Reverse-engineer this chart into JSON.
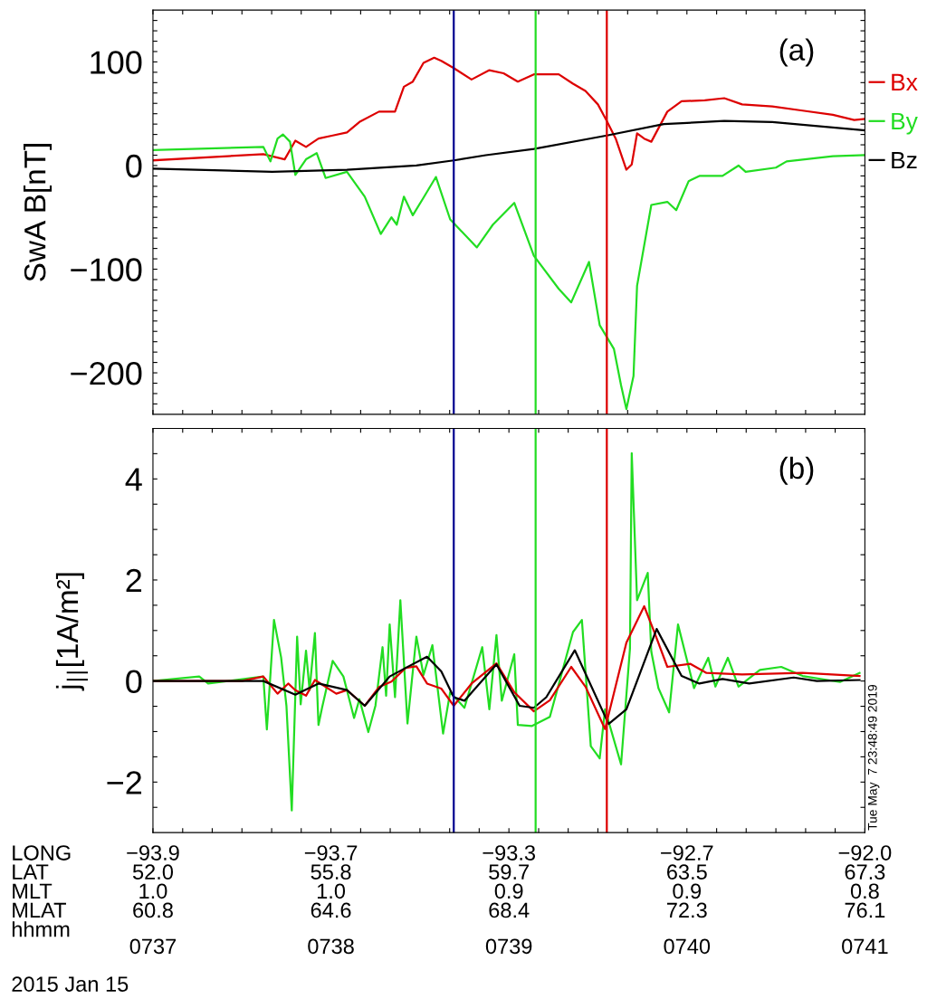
{
  "chart_data": [
    {
      "type": "line",
      "ylabel": "SwA B[nT]",
      "annotations": [
        "(a)"
      ],
      "xlim": [
        737,
        741
      ],
      "ylim": [
        -240,
        150
      ],
      "xticks": [
        {
          "value": 737,
          "label": null
        },
        {
          "value": 737.167,
          "label": null
        },
        {
          "value": 737.333,
          "label": null
        },
        {
          "value": 737.5,
          "label": null
        },
        {
          "value": 737.667,
          "label": null
        },
        {
          "value": 737.833,
          "label": null
        },
        {
          "value": 738,
          "label": null
        },
        {
          "value": 738.167,
          "label": null
        },
        {
          "value": 738.333,
          "label": null
        },
        {
          "value": 738.5,
          "label": null
        },
        {
          "value": 738.667,
          "label": null
        },
        {
          "value": 738.833,
          "label": null
        },
        {
          "value": 739,
          "label": null
        },
        {
          "value": 739.167,
          "label": null
        },
        {
          "value": 739.333,
          "label": null
        },
        {
          "value": 739.5,
          "label": null
        },
        {
          "value": 739.667,
          "label": null
        },
        {
          "value": 739.833,
          "label": null
        },
        {
          "value": 740,
          "label": null
        },
        {
          "value": 740.167,
          "label": null
        },
        {
          "value": 740.333,
          "label": null
        },
        {
          "value": 740.5,
          "label": null
        },
        {
          "value": 740.667,
          "label": null
        },
        {
          "value": 740.833,
          "label": null
        },
        {
          "value": 741,
          "label": null
        }
      ],
      "yticks": [
        {
          "value": -230,
          "label": null
        },
        {
          "value": -220,
          "label": null
        },
        {
          "value": -210,
          "label": null
        },
        {
          "value": -200,
          "label": "−200"
        },
        {
          "value": -190,
          "label": null
        },
        {
          "value": -180,
          "label": null
        },
        {
          "value": -170,
          "label": null
        },
        {
          "value": -160,
          "label": null
        },
        {
          "value": -150,
          "label": null
        },
        {
          "value": -140,
          "label": null
        },
        {
          "value": -130,
          "label": null
        },
        {
          "value": -120,
          "label": null
        },
        {
          "value": -110,
          "label": null
        },
        {
          "value": -100,
          "label": "−100"
        },
        {
          "value": -90,
          "label": null
        },
        {
          "value": -80,
          "label": null
        },
        {
          "value": -70,
          "label": null
        },
        {
          "value": -60,
          "label": null
        },
        {
          "value": -50,
          "label": null
        },
        {
          "value": -40,
          "label": null
        },
        {
          "value": -30,
          "label": null
        },
        {
          "value": -20,
          "label": null
        },
        {
          "value": -10,
          "label": null
        },
        0,
        {
          "value": 10,
          "label": null
        },
        {
          "value": 20,
          "label": null
        },
        {
          "value": 30,
          "label": null
        },
        {
          "value": 40,
          "label": null
        },
        {
          "value": 50,
          "label": null
        },
        {
          "value": 60,
          "label": null
        },
        {
          "value": 70,
          "label": null
        },
        {
          "value": 80,
          "label": null
        },
        {
          "value": 90,
          "label": null
        },
        100,
        {
          "value": 110,
          "label": null
        },
        {
          "value": 120,
          "label": null
        },
        {
          "value": 130,
          "label": null
        },
        {
          "value": 140,
          "label": null
        }
      ],
      "tick_labels": "y",
      "grid": false,
      "legend": "right",
      "marker": "none",
      "line_style": "solid",
      "ref_lines": [
        {
          "axis": "x",
          "value": 738.69,
          "color": "#000090"
        },
        {
          "axis": "x",
          "value": 739.15,
          "color": "#22dd22"
        },
        {
          "axis": "x",
          "value": 739.55,
          "color": "#dd0000"
        }
      ],
      "series": [
        {
          "name": "Bx",
          "color": "#dd0000",
          "x": [
            737.0,
            737.62,
            737.74,
            737.8,
            737.86,
            737.93,
            738.01,
            738.09,
            738.16,
            738.27,
            738.36,
            738.41,
            738.46,
            738.52,
            738.58,
            738.62,
            738.69,
            738.79,
            738.89,
            738.97,
            739.05,
            739.14,
            739.28,
            739.36,
            739.43,
            739.5,
            739.55,
            739.6,
            739.66,
            739.69,
            739.72,
            739.76,
            739.8,
            739.89,
            739.97,
            740.1,
            740.21,
            740.31,
            740.48,
            740.65,
            740.82,
            740.94,
            741.0
          ],
          "values": [
            5,
            11,
            6,
            24,
            18,
            26,
            29,
            32,
            42,
            52,
            52,
            76,
            81,
            99,
            104,
            101,
            94,
            83,
            92,
            89,
            81,
            88,
            88,
            79,
            72,
            59,
            43,
            26,
            -4,
            1,
            31,
            26,
            23,
            52,
            62,
            63,
            65,
            59,
            57,
            53,
            49,
            44,
            45
          ]
        },
        {
          "name": "By",
          "color": "#22dd22",
          "x": [
            737.0,
            737.62,
            737.66,
            737.7,
            737.73,
            737.77,
            737.8,
            737.86,
            737.92,
            737.97,
            738.09,
            738.19,
            738.28,
            738.34,
            738.37,
            738.41,
            738.46,
            738.52,
            738.59,
            738.67,
            738.82,
            738.91,
            739.03,
            739.14,
            739.28,
            739.35,
            739.45,
            739.51,
            739.59,
            739.63,
            739.66,
            739.7,
            739.72,
            739.8,
            739.89,
            739.94,
            740.01,
            740.07,
            740.2,
            740.29,
            740.33,
            740.5,
            740.56,
            740.82,
            741.0
          ],
          "values": [
            15,
            18,
            4,
            26,
            30,
            23,
            -9,
            6,
            12,
            -12,
            -6,
            -30,
            -66,
            -50,
            -57,
            -30,
            -48,
            -31,
            -11,
            -52,
            -79,
            -57,
            -36,
            -87,
            -119,
            -132,
            -93,
            -154,
            -177,
            -212,
            -235,
            -203,
            -116,
            -38,
            -35,
            -43,
            -15,
            -10,
            -10,
            0,
            -6,
            -2,
            4,
            9,
            10
          ]
        },
        {
          "name": "Bz",
          "color": "#000000",
          "x": [
            737.0,
            737.67,
            738.09,
            738.48,
            738.69,
            738.87,
            739.14,
            739.55,
            739.87,
            740.21,
            740.48,
            741.0
          ],
          "values": [
            -3,
            -6,
            -4,
            0,
            5,
            10,
            16,
            29,
            40,
            43,
            42,
            34
          ]
        }
      ]
    },
    {
      "type": "line",
      "ylabel": "j$_{||}$[1A/m²]",
      "annotations": [
        "(b)",
        "LONG\nLAT\nMLT\nMLAT\nhhmm",
        "2015 Jan 15",
        "Tue May  7 23:48:49 2019",
        "−93.9\n52.0\n1.0\n60.8",
        "−93.7\n55.8\n1.0\n64.6",
        "−93.3\n59.7\n0.9\n68.4",
        "−92.7\n63.5\n0.9\n72.3",
        "−92.0\n67.3\n0.8\n76.1"
      ],
      "xlim": [
        737,
        741
      ],
      "ylim": [
        -3,
        5
      ],
      "xticks": [
        {
          "value": 737,
          "label": "0737"
        },
        {
          "value": 737.167,
          "label": null
        },
        {
          "value": 737.333,
          "label": null
        },
        {
          "value": 737.5,
          "label": null
        },
        {
          "value": 737.667,
          "label": null
        },
        {
          "value": 737.833,
          "label": null
        },
        {
          "value": 738,
          "label": "0738"
        },
        {
          "value": 738.167,
          "label": null
        },
        {
          "value": 738.333,
          "label": null
        },
        {
          "value": 738.5,
          "label": null
        },
        {
          "value": 738.667,
          "label": null
        },
        {
          "value": 738.833,
          "label": null
        },
        {
          "value": 739,
          "label": "0739"
        },
        {
          "value": 739.167,
          "label": null
        },
        {
          "value": 739.333,
          "label": null
        },
        {
          "value": 739.5,
          "label": null
        },
        {
          "value": 739.667,
          "label": null
        },
        {
          "value": 739.833,
          "label": null
        },
        {
          "value": 740,
          "label": "0740"
        },
        {
          "value": 740.167,
          "label": null
        },
        {
          "value": 740.333,
          "label": null
        },
        {
          "value": 740.5,
          "label": null
        },
        {
          "value": 740.667,
          "label": null
        },
        {
          "value": 740.833,
          "label": null
        },
        {
          "value": 741,
          "label": "0741"
        }
      ],
      "yticks": [
        {
          "value": -2.5,
          "label": null
        },
        {
          "value": -2,
          "label": "−2"
        },
        {
          "value": -1.5,
          "label": null
        },
        {
          "value": -1,
          "label": null
        },
        {
          "value": -0.5,
          "label": null
        },
        0,
        {
          "value": 0.5,
          "label": null
        },
        {
          "value": 1,
          "label": null
        },
        {
          "value": 1.5,
          "label": null
        },
        2,
        {
          "value": 2.5,
          "label": null
        },
        {
          "value": 3,
          "label": null
        },
        {
          "value": 3.5,
          "label": null
        },
        4,
        {
          "value": 4.5,
          "label": null
        }
      ],
      "grid": false,
      "marker": "none",
      "line_style": "solid",
      "ref_lines": [
        {
          "axis": "x",
          "value": 738.69,
          "color": "#000090"
        },
        {
          "axis": "x",
          "value": 739.15,
          "color": "#22dd22"
        },
        {
          "axis": "x",
          "value": 739.55,
          "color": "#dd0000"
        }
      ],
      "series": [
        {
          "color": "#22dd22",
          "x": [
            737.0,
            737.26,
            737.31,
            737.62,
            737.64,
            737.68,
            737.72,
            737.75,
            737.78,
            737.81,
            737.83,
            737.86,
            737.88,
            737.91,
            737.93,
            737.95,
            738.01,
            738.07,
            738.13,
            738.16,
            738.21,
            738.25,
            738.29,
            738.31,
            738.33,
            738.36,
            738.39,
            738.43,
            738.48,
            738.52,
            738.57,
            738.63,
            738.67,
            738.75,
            738.85,
            738.89,
            738.93,
            738.96,
            739.03,
            739.05,
            739.13,
            739.23,
            739.36,
            739.41,
            739.46,
            739.51,
            739.54,
            739.63,
            739.68,
            739.69,
            739.72,
            739.78,
            739.8,
            739.84,
            739.9,
            739.95,
            740.04,
            740.12,
            740.16,
            740.23,
            740.29,
            740.41,
            740.53,
            740.65,
            740.86,
            740.97
          ],
          "values": [
            0,
            0.09,
            -0.05,
            0.09,
            -0.96,
            1.21,
            0.47,
            -0.49,
            -2.56,
            0.88,
            -0.46,
            0.6,
            -0.18,
            0.95,
            -0.87,
            -0.53,
            0.4,
            0.09,
            -0.73,
            -0.36,
            -1.01,
            -0.49,
            0.67,
            -0.29,
            1.12,
            -0.32,
            1.6,
            -0.84,
            0.88,
            0.12,
            0.71,
            -1.04,
            -0.22,
            -0.53,
            0.67,
            -0.56,
            0.91,
            -0.39,
            0.53,
            -0.87,
            -0.89,
            -0.71,
            0.97,
            1.21,
            -1.29,
            -1.53,
            -0.56,
            -1.65,
            0.64,
            4.51,
            1.6,
            2.14,
            0.58,
            -0.14,
            -0.62,
            1.12,
            -0.14,
            0.46,
            -0.11,
            0.46,
            -0.11,
            0.22,
            0.28,
            0.1,
            -0.02,
            0.16
          ]
        },
        {
          "color": "#dd0000",
          "x": [
            737.0,
            737.5,
            737.62,
            737.7,
            737.76,
            737.8,
            737.86,
            737.91,
            738.03,
            738.09,
            738.19,
            738.27,
            738.34,
            738.42,
            738.48,
            738.54,
            738.62,
            738.69,
            738.79,
            738.93,
            739.03,
            739.14,
            739.23,
            739.35,
            739.43,
            739.54,
            739.66,
            739.76,
            739.82,
            739.89,
            740.02,
            740.11,
            740.31,
            740.65,
            740.97
          ],
          "values": [
            0,
            0,
            0.09,
            -0.25,
            -0.05,
            -0.18,
            -0.29,
            0.02,
            -0.25,
            -0.18,
            -0.49,
            -0.12,
            -0.01,
            0.26,
            0.29,
            -0.05,
            -0.15,
            -0.49,
            -0.05,
            0.35,
            -0.22,
            -0.6,
            -0.38,
            0.28,
            -0.11,
            -0.95,
            0.76,
            1.48,
            0.94,
            0.28,
            0.34,
            0.16,
            0.13,
            0.16,
            0.1
          ]
        },
        {
          "color": "#000000",
          "x": [
            737.0,
            737.62,
            737.8,
            737.93,
            738.09,
            738.19,
            738.33,
            738.42,
            738.54,
            738.62,
            738.69,
            738.75,
            738.93,
            739.06,
            739.14,
            739.21,
            739.37,
            739.56,
            739.66,
            739.83,
            739.97,
            740.07,
            740.2,
            740.35,
            740.6,
            740.73,
            740.97
          ],
          "values": [
            0,
            0,
            -0.27,
            -0.05,
            -0.18,
            -0.49,
            0.09,
            0.26,
            0.48,
            0.19,
            -0.32,
            -0.39,
            0.33,
            -0.49,
            -0.53,
            -0.32,
            0.61,
            -0.85,
            -0.56,
            1.03,
            0.1,
            -0.05,
            0.04,
            -0.05,
            0.07,
            0,
            0.02
          ]
        }
      ]
    }
  ]
}
